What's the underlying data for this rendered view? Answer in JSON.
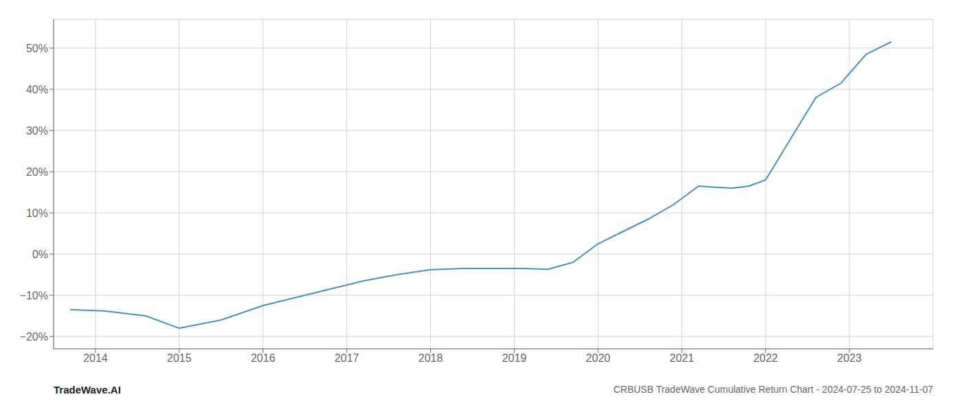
{
  "chart_data": {
    "type": "line",
    "title": "CRBUSB TradeWave Cumulative Return Chart - 2024-07-25 to 2024-11-07",
    "annotations": [
      "TradeWave.AI"
    ],
    "color": "#4a90b8",
    "grid": true,
    "x": [
      2013.7,
      2014.1,
      2014.6,
      2015.0,
      2015.5,
      2016.0,
      2016.4,
      2016.8,
      2017.2,
      2017.6,
      2018.0,
      2018.4,
      2018.8,
      2019.1,
      2019.4,
      2019.7,
      2020.0,
      2020.3,
      2020.6,
      2020.9,
      2021.2,
      2021.4,
      2021.6,
      2021.8,
      2022.0,
      2022.3,
      2022.6,
      2022.9,
      2023.2,
      2023.5
    ],
    "values": [
      -13.5,
      -13.8,
      -15.0,
      -18.0,
      -16.0,
      -12.5,
      -10.5,
      -8.5,
      -6.5,
      -5.0,
      -3.8,
      -3.5,
      -3.5,
      -3.5,
      -3.7,
      -2.0,
      2.5,
      5.5,
      8.5,
      12.0,
      16.5,
      16.2,
      16.0,
      16.5,
      18.0,
      28.0,
      38.0,
      41.5,
      48.5,
      51.5
    ],
    "xlim": [
      2013.5,
      2024.0
    ],
    "xticks": [
      2014,
      2015,
      2016,
      2017,
      2018,
      2019,
      2020,
      2021,
      2022,
      2023
    ],
    "ylim": [
      -23,
      57
    ],
    "yticks": [
      {
        "value": -20,
        "label": "−20%"
      },
      {
        "value": -10,
        "label": "−10%"
      },
      {
        "value": 0,
        "label": "0%"
      },
      {
        "value": 10,
        "label": "10%"
      },
      {
        "value": 20,
        "label": "20%"
      },
      {
        "value": 30,
        "label": "30%"
      },
      {
        "value": 40,
        "label": "40%"
      },
      {
        "value": 50,
        "label": "50%"
      }
    ]
  }
}
